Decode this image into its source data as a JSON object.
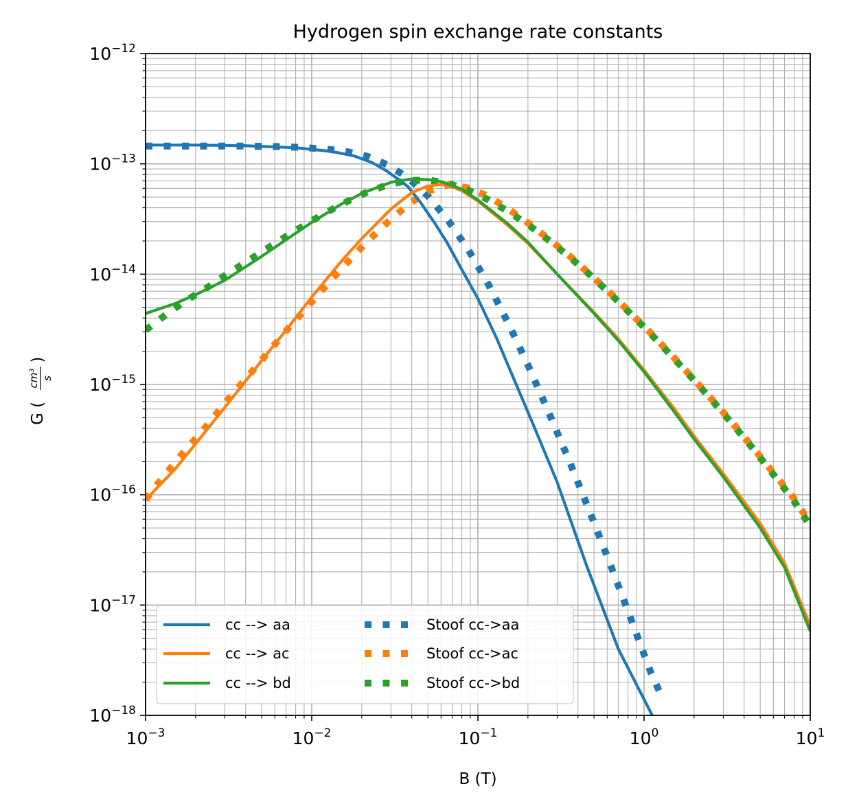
{
  "chart_data": {
    "type": "line",
    "title": "Hydrogen spin exchange rate constants",
    "xlabel": "B (T)",
    "ylabel": "G (cm³/s)",
    "ylabel_prefix": "G (",
    "ylabel_suffix": ")",
    "ylabel_frac_num": "cm³",
    "ylabel_frac_den": "s",
    "xscale": "log",
    "yscale": "log",
    "xlim": [
      0.001,
      10
    ],
    "ylim": [
      1e-18,
      1e-12
    ],
    "grid": true,
    "grid_which": "both",
    "legend_position": "lower-left",
    "legend_columns": 2,
    "x_ticks": [
      {
        "value": 0.001,
        "base": "10",
        "exp": "−3"
      },
      {
        "value": 0.01,
        "base": "10",
        "exp": "−2"
      },
      {
        "value": 0.1,
        "base": "10",
        "exp": "−1"
      },
      {
        "value": 1,
        "base": "10",
        "exp": "0"
      },
      {
        "value": 10,
        "base": "10",
        "exp": "1"
      }
    ],
    "y_ticks": [
      {
        "value": 1e-12,
        "base": "10",
        "exp": "−12"
      },
      {
        "value": 1e-13,
        "base": "10",
        "exp": "−13"
      },
      {
        "value": 1e-14,
        "base": "10",
        "exp": "−14"
      },
      {
        "value": 1e-15,
        "base": "10",
        "exp": "−15"
      },
      {
        "value": 1e-16,
        "base": "10",
        "exp": "−16"
      },
      {
        "value": 1e-17,
        "base": "10",
        "exp": "−17"
      },
      {
        "value": 1e-18,
        "base": "10",
        "exp": "−18"
      }
    ],
    "series": [
      {
        "name": "cc --> aa",
        "style": "solid",
        "color": "#1f77b4",
        "x": [
          0.001,
          0.002,
          0.004,
          0.008,
          0.013,
          0.018,
          0.023,
          0.028,
          0.033,
          0.038,
          0.045,
          0.055,
          0.065,
          0.08,
          0.1,
          0.13,
          0.17,
          0.22,
          0.3,
          0.45,
          0.7,
          1.12
        ],
        "y": [
          1.48e-13,
          1.48e-13,
          1.46e-13,
          1.4e-13,
          1.3e-13,
          1.18e-13,
          1.03e-13,
          8.7e-14,
          7.3e-14,
          6.2e-14,
          4.5e-14,
          2.9e-14,
          1.95e-14,
          1.1e-14,
          6e-15,
          2.6e-15,
          1e-15,
          4e-16,
          1.3e-16,
          2.3e-17,
          4e-18,
          1e-18
        ]
      },
      {
        "name": "cc --> ac",
        "style": "solid",
        "color": "#ff7f0e",
        "x": [
          0.001,
          0.0015,
          0.002,
          0.003,
          0.005,
          0.007,
          0.01,
          0.015,
          0.02,
          0.03,
          0.04,
          0.05,
          0.06,
          0.07,
          0.08,
          0.1,
          0.15,
          0.2,
          0.3,
          0.5,
          0.7,
          1,
          1.5,
          2,
          3,
          5,
          7,
          10
        ],
        "y": [
          9e-17,
          1.7e-16,
          2.9e-16,
          6.2e-16,
          1.65e-15,
          3.1e-15,
          6.2e-15,
          1.3e-14,
          2.1e-14,
          3.9e-14,
          5.5e-14,
          6.3e-14,
          6.5e-14,
          6.2e-14,
          5.7e-14,
          4.6e-14,
          2.8e-14,
          1.9e-14,
          1e-14,
          4.5e-15,
          2.6e-15,
          1.35e-15,
          6.2e-16,
          3.4e-16,
          1.55e-16,
          5.5e-17,
          2.4e-17,
          6.5e-18
        ]
      },
      {
        "name": "cc --> bd",
        "style": "solid",
        "color": "#2ca02c",
        "x": [
          0.001,
          0.0015,
          0.002,
          0.003,
          0.005,
          0.007,
          0.01,
          0.015,
          0.02,
          0.03,
          0.04,
          0.05,
          0.06,
          0.08,
          0.1,
          0.15,
          0.2,
          0.3,
          0.5,
          0.7,
          1,
          1.5,
          2,
          3,
          5,
          7,
          10
        ],
        "y": [
          4.4e-15,
          5.4e-15,
          6.5e-15,
          8.8e-15,
          1.45e-14,
          2.05e-14,
          2.95e-14,
          4.3e-14,
          5.4e-14,
          6.8e-14,
          7.3e-14,
          7.2e-14,
          6.9e-14,
          5.9e-14,
          4.7e-14,
          2.9e-14,
          1.95e-14,
          1e-14,
          4.4e-15,
          2.5e-15,
          1.3e-15,
          5.8e-16,
          3.2e-16,
          1.45e-16,
          5e-17,
          2.2e-17,
          5.8e-18
        ]
      },
      {
        "name": "Stoof cc->aa",
        "style": "dotted",
        "color": "#1f77b4",
        "x": [
          0.001,
          0.0013,
          0.0017,
          0.0023,
          0.003,
          0.004,
          0.0053,
          0.007,
          0.0093,
          0.0123,
          0.0163,
          0.0216,
          0.0286,
          0.0379,
          0.0501,
          0.0664,
          0.0879,
          0.1165,
          0.1543,
          0.2043,
          0.2707,
          0.3585,
          0.4748,
          0.6288,
          0.8329,
          1.1032,
          1.3
        ],
        "y": [
          1.45e-13,
          1.45e-13,
          1.45e-13,
          1.45e-13,
          1.45e-13,
          1.45e-13,
          1.44e-13,
          1.43e-13,
          1.4e-13,
          1.36e-13,
          1.29e-13,
          1.17e-13,
          9.8e-14,
          7.5e-14,
          5.1e-14,
          3.05e-14,
          1.65e-14,
          7.9e-15,
          3.45e-15,
          1.4e-15,
          5.3e-16,
          1.95e-16,
          6.8e-17,
          2.3e-17,
          7.5e-18,
          2.4e-18,
          1.4e-18
        ]
      },
      {
        "name": "Stoof cc->ac",
        "style": "dotted",
        "color": "#ff7f0e",
        "x": [
          0.001,
          0.0013,
          0.0017,
          0.0023,
          0.003,
          0.004,
          0.0053,
          0.007,
          0.0093,
          0.0123,
          0.0163,
          0.0216,
          0.0286,
          0.0379,
          0.0501,
          0.0664,
          0.0879,
          0.1165,
          0.1543,
          0.2043,
          0.2707,
          0.3585,
          0.4748,
          0.6288,
          0.8329,
          1.1032,
          1.4612,
          1.9354,
          2.5636,
          3.3955,
          4.4974,
          5.957,
          7.8902,
          10
        ],
        "y": [
          9e-17,
          1.5e-16,
          2.45e-16,
          4.1e-16,
          6.8e-16,
          1.12e-15,
          1.85e-15,
          3.05e-15,
          4.95e-15,
          8e-15,
          1.27e-14,
          1.98e-14,
          2.95e-14,
          4.25e-14,
          5.65e-14,
          6.45e-14,
          6.05e-14,
          5.05e-14,
          3.85e-14,
          2.85e-14,
          2.05e-14,
          1.45e-14,
          9.9e-15,
          6.7e-15,
          4.4e-15,
          2.9e-15,
          1.85e-15,
          1.17e-15,
          7.3e-16,
          4.5e-16,
          2.7e-16,
          1.6e-16,
          9.5e-17,
          5.5e-17
        ]
      },
      {
        "name": "Stoof cc->bd",
        "style": "dotted",
        "color": "#2ca02c",
        "x": [
          0.001,
          0.0013,
          0.0017,
          0.0023,
          0.003,
          0.004,
          0.0053,
          0.007,
          0.0093,
          0.0123,
          0.0163,
          0.0216,
          0.0286,
          0.0379,
          0.0501,
          0.0664,
          0.0879,
          0.1165,
          0.1543,
          0.2043,
          0.2707,
          0.3585,
          0.4748,
          0.6288,
          0.8329,
          1.1032,
          1.4612,
          1.9354,
          2.5636,
          3.3955,
          4.4974,
          5.957,
          7.8902,
          10
        ],
        "y": [
          3.1e-15,
          4.2e-15,
          5.6e-15,
          7.4e-15,
          9.7e-15,
          1.28e-14,
          1.68e-14,
          2.2e-14,
          2.85e-14,
          3.65e-14,
          4.55e-14,
          5.55e-14,
          6.45e-14,
          7.05e-14,
          7.15e-14,
          6.65e-14,
          5.75e-14,
          4.7e-14,
          3.65e-14,
          2.75e-14,
          2e-14,
          1.42e-14,
          9.8e-15,
          6.6e-15,
          4.35e-15,
          2.85e-15,
          1.82e-15,
          1.15e-15,
          7.2e-16,
          4.4e-16,
          2.65e-16,
          1.55e-16,
          9e-17,
          5.2e-17
        ]
      }
    ]
  }
}
